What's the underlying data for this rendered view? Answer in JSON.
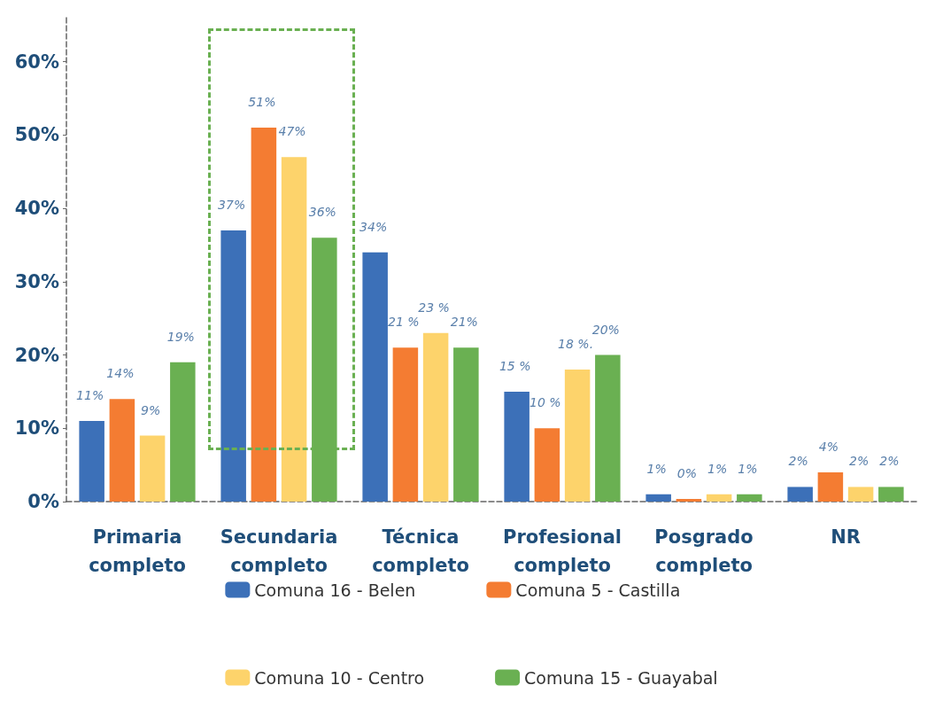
{
  "chart_data": {
    "type": "bar",
    "categories": [
      "Primaria completo",
      "Secundaria completo",
      "Técnica completo",
      "Profesional completo",
      "Posgrado completo",
      "NR"
    ],
    "series": [
      {
        "name": "Comuna 16 - Belen",
        "color": "#3c70b8",
        "values": [
          11,
          37,
          34,
          15,
          1,
          2
        ],
        "value_labels": [
          "11%",
          "37%",
          "34%",
          "15 %",
          "1%",
          "2%"
        ]
      },
      {
        "name": "Comuna 5 - Castilla",
        "color": "#f47c32",
        "values": [
          14,
          51,
          21,
          10,
          0,
          4
        ],
        "value_labels": [
          "14%",
          "51%",
          "21 %",
          "10 %",
          "0%",
          "4%"
        ]
      },
      {
        "name": "Comuna 10 - Centro",
        "color": "#fdd36b",
        "values": [
          9,
          47,
          23,
          18,
          1,
          2
        ],
        "value_labels": [
          "9%",
          "47%",
          "23 %",
          "18 %.",
          "1%",
          "2%"
        ]
      },
      {
        "name": "Comuna 15 - Guayabal",
        "color": "#6ab052",
        "values": [
          19,
          36,
          21,
          20,
          1,
          2
        ],
        "value_labels": [
          "19%",
          "36%",
          "21%",
          "20%",
          "1%",
          "2%"
        ]
      }
    ],
    "ylim": [
      0,
      66
    ],
    "yticks": [
      {
        "value": 0,
        "label": "0%"
      },
      {
        "value": 10,
        "label": "10%"
      },
      {
        "value": 20,
        "label": "20%"
      },
      {
        "value": 30,
        "label": "30%"
      },
      {
        "value": 40,
        "label": "40%"
      },
      {
        "value": 50,
        "label": "50%"
      },
      {
        "value": 60,
        "label": "60%"
      }
    ],
    "grid": false,
    "legend": "bottom"
  }
}
